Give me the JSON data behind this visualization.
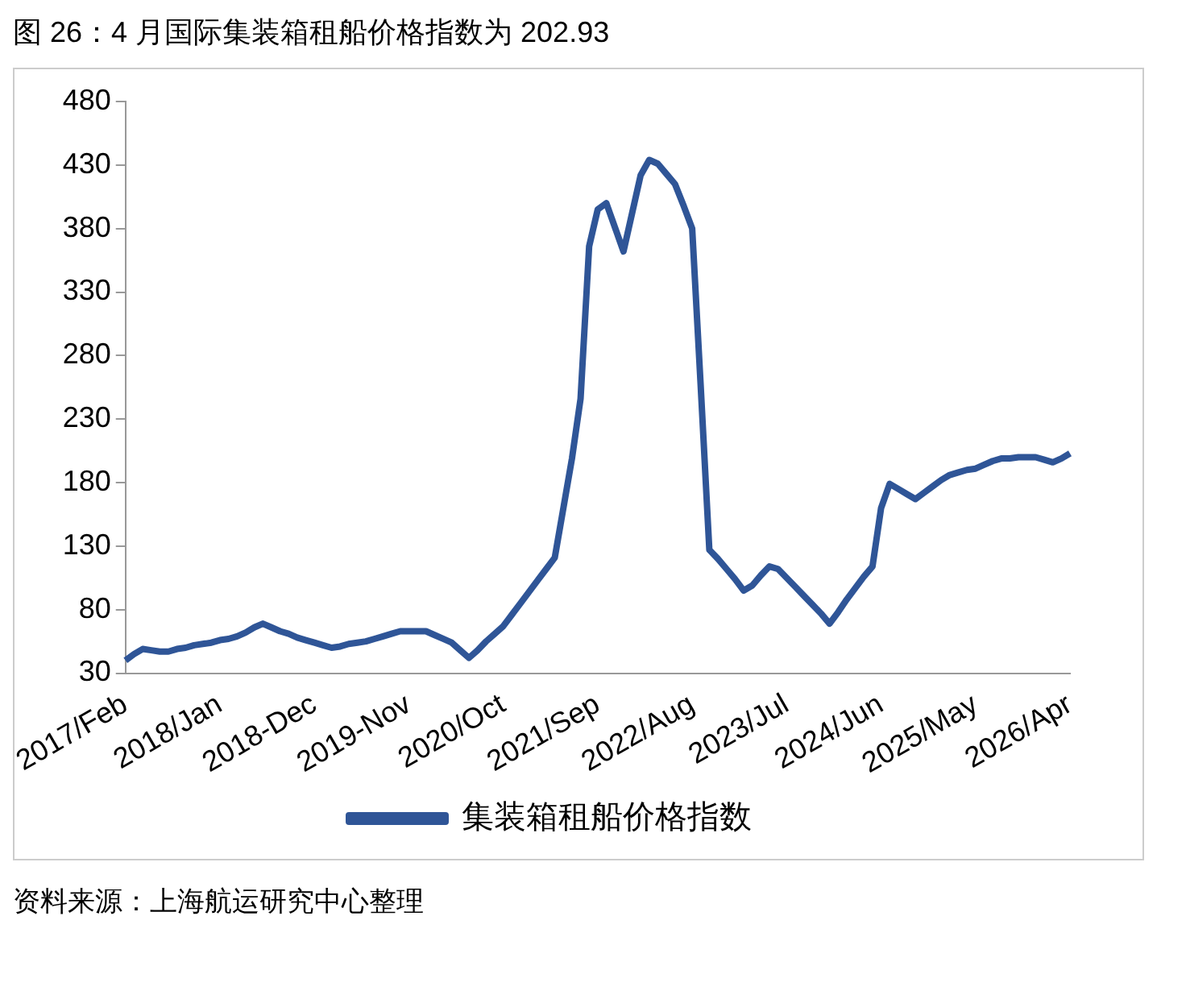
{
  "chart_data": {
    "type": "line",
    "title": "图 26：4 月国际集装箱租船价格指数为 202.93",
    "annotations": [
      "资料来源：上海航运研究中心整理"
    ],
    "categories": [
      "2017/Feb",
      null,
      null,
      null,
      null,
      null,
      null,
      null,
      null,
      null,
      null,
      "2018/Jan",
      null,
      null,
      null,
      null,
      null,
      null,
      null,
      null,
      null,
      null,
      "2018-Dec",
      null,
      null,
      null,
      null,
      null,
      null,
      null,
      null,
      null,
      null,
      "2019-Nov",
      null,
      null,
      null,
      null,
      null,
      null,
      null,
      null,
      null,
      null,
      "2020/Oct",
      null,
      null,
      null,
      null,
      null,
      null,
      null,
      null,
      null,
      null,
      "2021/Sep",
      null,
      null,
      null,
      null,
      null,
      null,
      null,
      null,
      null,
      null,
      "2022/Aug",
      null,
      null,
      null,
      null,
      null,
      null,
      null,
      null,
      null,
      null,
      "2023/Jul",
      null,
      null,
      null,
      null,
      null,
      null,
      null,
      null,
      null,
      null,
      "2024/Jun",
      null,
      null,
      null,
      null,
      null,
      null,
      null,
      null,
      null,
      null,
      "2025/May",
      null,
      null,
      null,
      null,
      null,
      null,
      null,
      null,
      null,
      null,
      "2026/Apr"
    ],
    "series": [
      {
        "name": "集装箱租船价格指数",
        "color": "#2f5597",
        "values": [
          40,
          45,
          49,
          48,
          47,
          47,
          49,
          50,
          52,
          53,
          54,
          56,
          57,
          59,
          62,
          66,
          69,
          66,
          63,
          61,
          58,
          56,
          54,
          52,
          50,
          51,
          53,
          54,
          55,
          57,
          59,
          61,
          63,
          63,
          63,
          63,
          60,
          57,
          54,
          48,
          42,
          48,
          55,
          61,
          67,
          76,
          85,
          94,
          103,
          112,
          121,
          160,
          199,
          246,
          366,
          395,
          400,
          381,
          362,
          392,
          422,
          434,
          431,
          423,
          415,
          398,
          380,
          255,
          127,
          120,
          112,
          104,
          95,
          99,
          107,
          114,
          112,
          105,
          98,
          91,
          84,
          77,
          69,
          78,
          88,
          97,
          106,
          114,
          160,
          179,
          175,
          171,
          167,
          172,
          177,
          182,
          186,
          188,
          190,
          191,
          194,
          197,
          199,
          199,
          200,
          200,
          200,
          198,
          196,
          199,
          203
        ]
      }
    ],
    "ylim": [
      30,
      480
    ],
    "yticks": [
      30,
      80,
      130,
      180,
      230,
      280,
      330,
      380,
      430,
      480
    ],
    "grid": false,
    "legend": "bottom",
    "marker": "none",
    "line_style": "solid"
  }
}
